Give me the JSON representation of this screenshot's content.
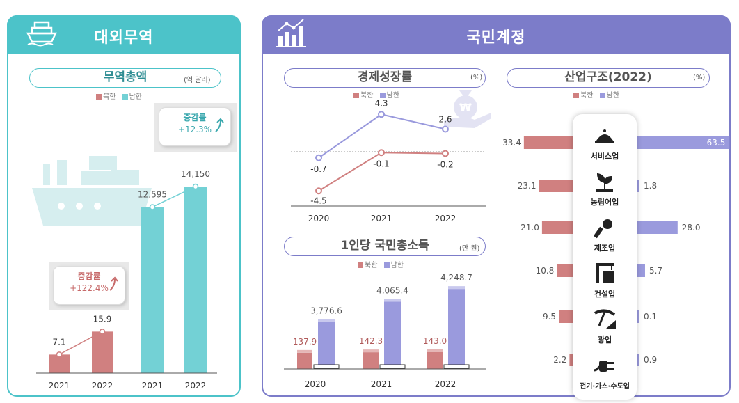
{
  "trade": {
    "title": "대외무역",
    "sub_title": "무역총액",
    "unit": "(억 달러)",
    "legend": {
      "north": "북한",
      "south": "남한"
    },
    "callout_north": {
      "label": "증감률",
      "value": "+122.4%"
    },
    "callout_south": {
      "label": "증감률",
      "value": "+12.3%"
    }
  },
  "national_accounts": {
    "title": "국민계정",
    "growth": {
      "title": "경제성장률",
      "unit": "(%)",
      "legend": {
        "north": "북한",
        "south": "남한"
      }
    },
    "gni": {
      "title": "1인당 국민총소득",
      "unit": "(만 원)",
      "legend": {
        "north": "북한",
        "south": "남한"
      }
    },
    "industry": {
      "title": "산업구조(2022)",
      "unit": "(%)",
      "legend": {
        "north": "북한",
        "south": "남한"
      },
      "labels": [
        "서비스업",
        "농림어업",
        "제조업",
        "건설업",
        "광업",
        "전기·가스·수도업"
      ]
    }
  },
  "colors": {
    "teal": "#4cc3c9",
    "teal_bar": "#73d1d5",
    "purple": "#7c7cc9",
    "purple_bar": "#9a9add",
    "north": "#d08080"
  },
  "chart_data": [
    {
      "type": "bar",
      "title": "무역총액",
      "unit": "억 달러",
      "series": [
        {
          "name": "북한",
          "categories": [
            "2021",
            "2022"
          ],
          "values": [
            7.1,
            15.9
          ],
          "labels": [
            "7.1",
            "15.9"
          ]
        },
        {
          "name": "남한",
          "categories": [
            "2021",
            "2022"
          ],
          "values": [
            12595,
            14150
          ],
          "labels": [
            "12,595",
            "14,150"
          ]
        }
      ]
    },
    {
      "type": "line",
      "title": "경제성장률",
      "unit": "%",
      "x": [
        "2020",
        "2021",
        "2022"
      ],
      "series": [
        {
          "name": "북한",
          "values": [
            -4.5,
            -0.1,
            -0.2
          ],
          "labels": [
            "-4.5",
            "-0.1",
            "-0.2"
          ]
        },
        {
          "name": "남한",
          "values": [
            -0.7,
            4.3,
            2.6
          ],
          "labels": [
            "-0.7",
            "4.3",
            "2.6"
          ]
        }
      ]
    },
    {
      "type": "bar",
      "title": "1인당 국민총소득",
      "unit": "만 원",
      "categories": [
        "2020",
        "2021",
        "2022"
      ],
      "series": [
        {
          "name": "북한",
          "values": [
            137.9,
            142.3,
            143.0
          ],
          "labels": [
            "137.9",
            "142.3",
            "143.0"
          ]
        },
        {
          "name": "남한",
          "values": [
            3776.6,
            4065.4,
            4248.7
          ],
          "labels": [
            "3,776.6",
            "4,065.4",
            "4,248.7"
          ]
        }
      ]
    },
    {
      "type": "bar",
      "title": "산업구조(2022)",
      "unit": "%",
      "categories": [
        "서비스업",
        "농림어업",
        "제조업",
        "건설업",
        "광업",
        "전기·가스·수도업"
      ],
      "series": [
        {
          "name": "북한",
          "values": [
            33.4,
            23.1,
            21.0,
            10.8,
            9.5,
            2.2
          ],
          "labels": [
            "33.4",
            "23.1",
            "21.0",
            "10.8",
            "9.5",
            "2.2"
          ]
        },
        {
          "name": "남한",
          "values": [
            63.5,
            1.8,
            28.0,
            5.7,
            0.1,
            0.9
          ],
          "labels": [
            "63.5",
            "1.8",
            "28.0",
            "5.7",
            "0.1",
            "0.9"
          ]
        }
      ]
    }
  ]
}
